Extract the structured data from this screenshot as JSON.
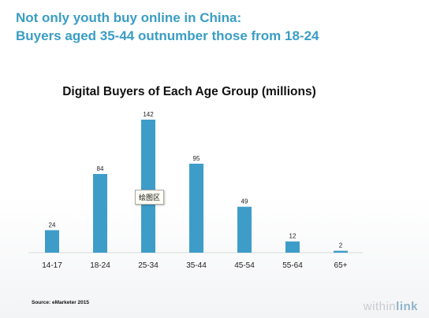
{
  "headline": {
    "line1": "Not only youth buy online in China:",
    "line2": "Buyers aged 35-44 outnumber those from 18-24"
  },
  "chart_data": {
    "type": "bar",
    "title": "Digital Buyers of Each Age Group (millions)",
    "categories": [
      "14-17",
      "18-24",
      "25-34",
      "35-44",
      "45-54",
      "55-64",
      "65+"
    ],
    "values": [
      24,
      84,
      142,
      95,
      49,
      12,
      2
    ],
    "data_labels": [
      "24",
      "84",
      "142",
      "95",
      "49",
      "12",
      "2"
    ],
    "xlabel": "",
    "ylabel": "",
    "ylim": [
      0,
      142
    ],
    "grid": false,
    "legend": "none",
    "bar_color": "#3d9dc8"
  },
  "tooltip": {
    "text": "绘图区"
  },
  "source": "Source: eMarketer 2015",
  "logo": {
    "part1": "within",
    "part2": "link"
  }
}
